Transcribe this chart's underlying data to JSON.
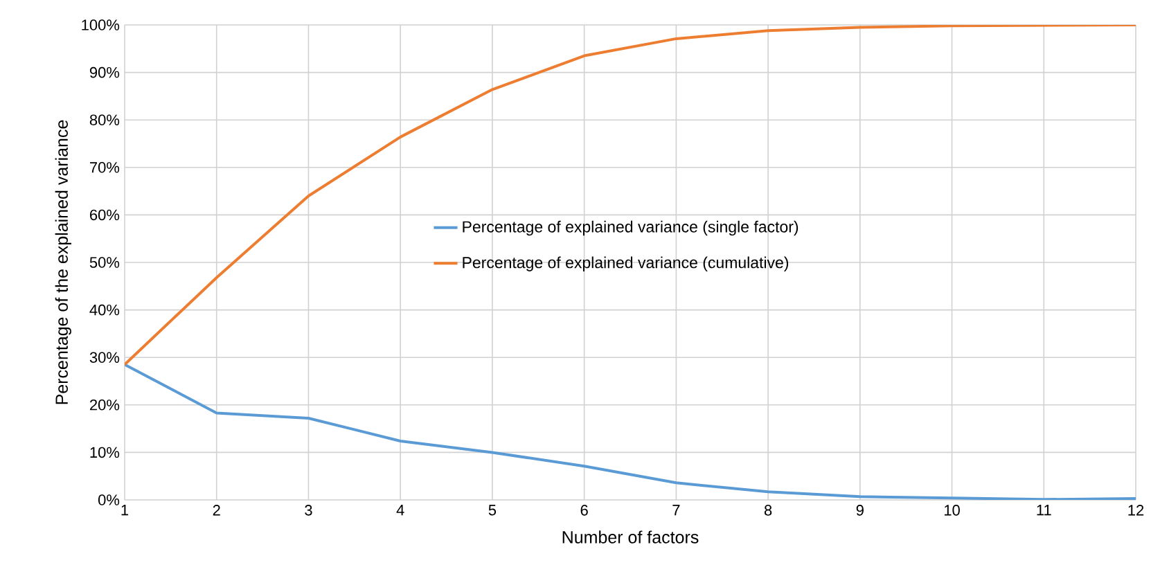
{
  "chart_data": {
    "type": "line",
    "xlabel": "Number of factors",
    "ylabel": "Percentage of the explained variance",
    "x": [
      1,
      2,
      3,
      4,
      5,
      6,
      7,
      8,
      9,
      10,
      11,
      12
    ],
    "series": [
      {
        "name": "Percentage of explained variance (single factor)",
        "color": "#5b9bd5",
        "values": [
          28.5,
          18.3,
          17.2,
          12.4,
          10.0,
          7.1,
          3.6,
          1.7,
          0.7,
          0.4,
          0.1,
          0.3
        ]
      },
      {
        "name": "Percentage of explained variance (cumulative)",
        "color": "#ed7d31",
        "values": [
          28.5,
          46.8,
          64.0,
          76.4,
          86.4,
          93.5,
          97.1,
          98.8,
          99.5,
          99.8,
          99.9,
          100.0
        ]
      }
    ],
    "xlim": [
      1,
      12
    ],
    "xticks": [
      1,
      2,
      3,
      4,
      5,
      6,
      7,
      8,
      9,
      10,
      11,
      12
    ],
    "ylim": [
      0,
      100
    ],
    "yticks": [
      {
        "value": 0,
        "label": "0%"
      },
      {
        "value": 10,
        "label": "10%"
      },
      {
        "value": 20,
        "label": "20%"
      },
      {
        "value": 30,
        "label": "30%"
      },
      {
        "value": 40,
        "label": "40%"
      },
      {
        "value": 50,
        "label": "50%"
      },
      {
        "value": 60,
        "label": "60%"
      },
      {
        "value": 70,
        "label": "70%"
      },
      {
        "value": 80,
        "label": "80%"
      },
      {
        "value": 90,
        "label": "90%"
      },
      {
        "value": 100,
        "label": "100%"
      }
    ],
    "grid": true,
    "legend": "right",
    "marker": "none",
    "line_style": "solid"
  }
}
